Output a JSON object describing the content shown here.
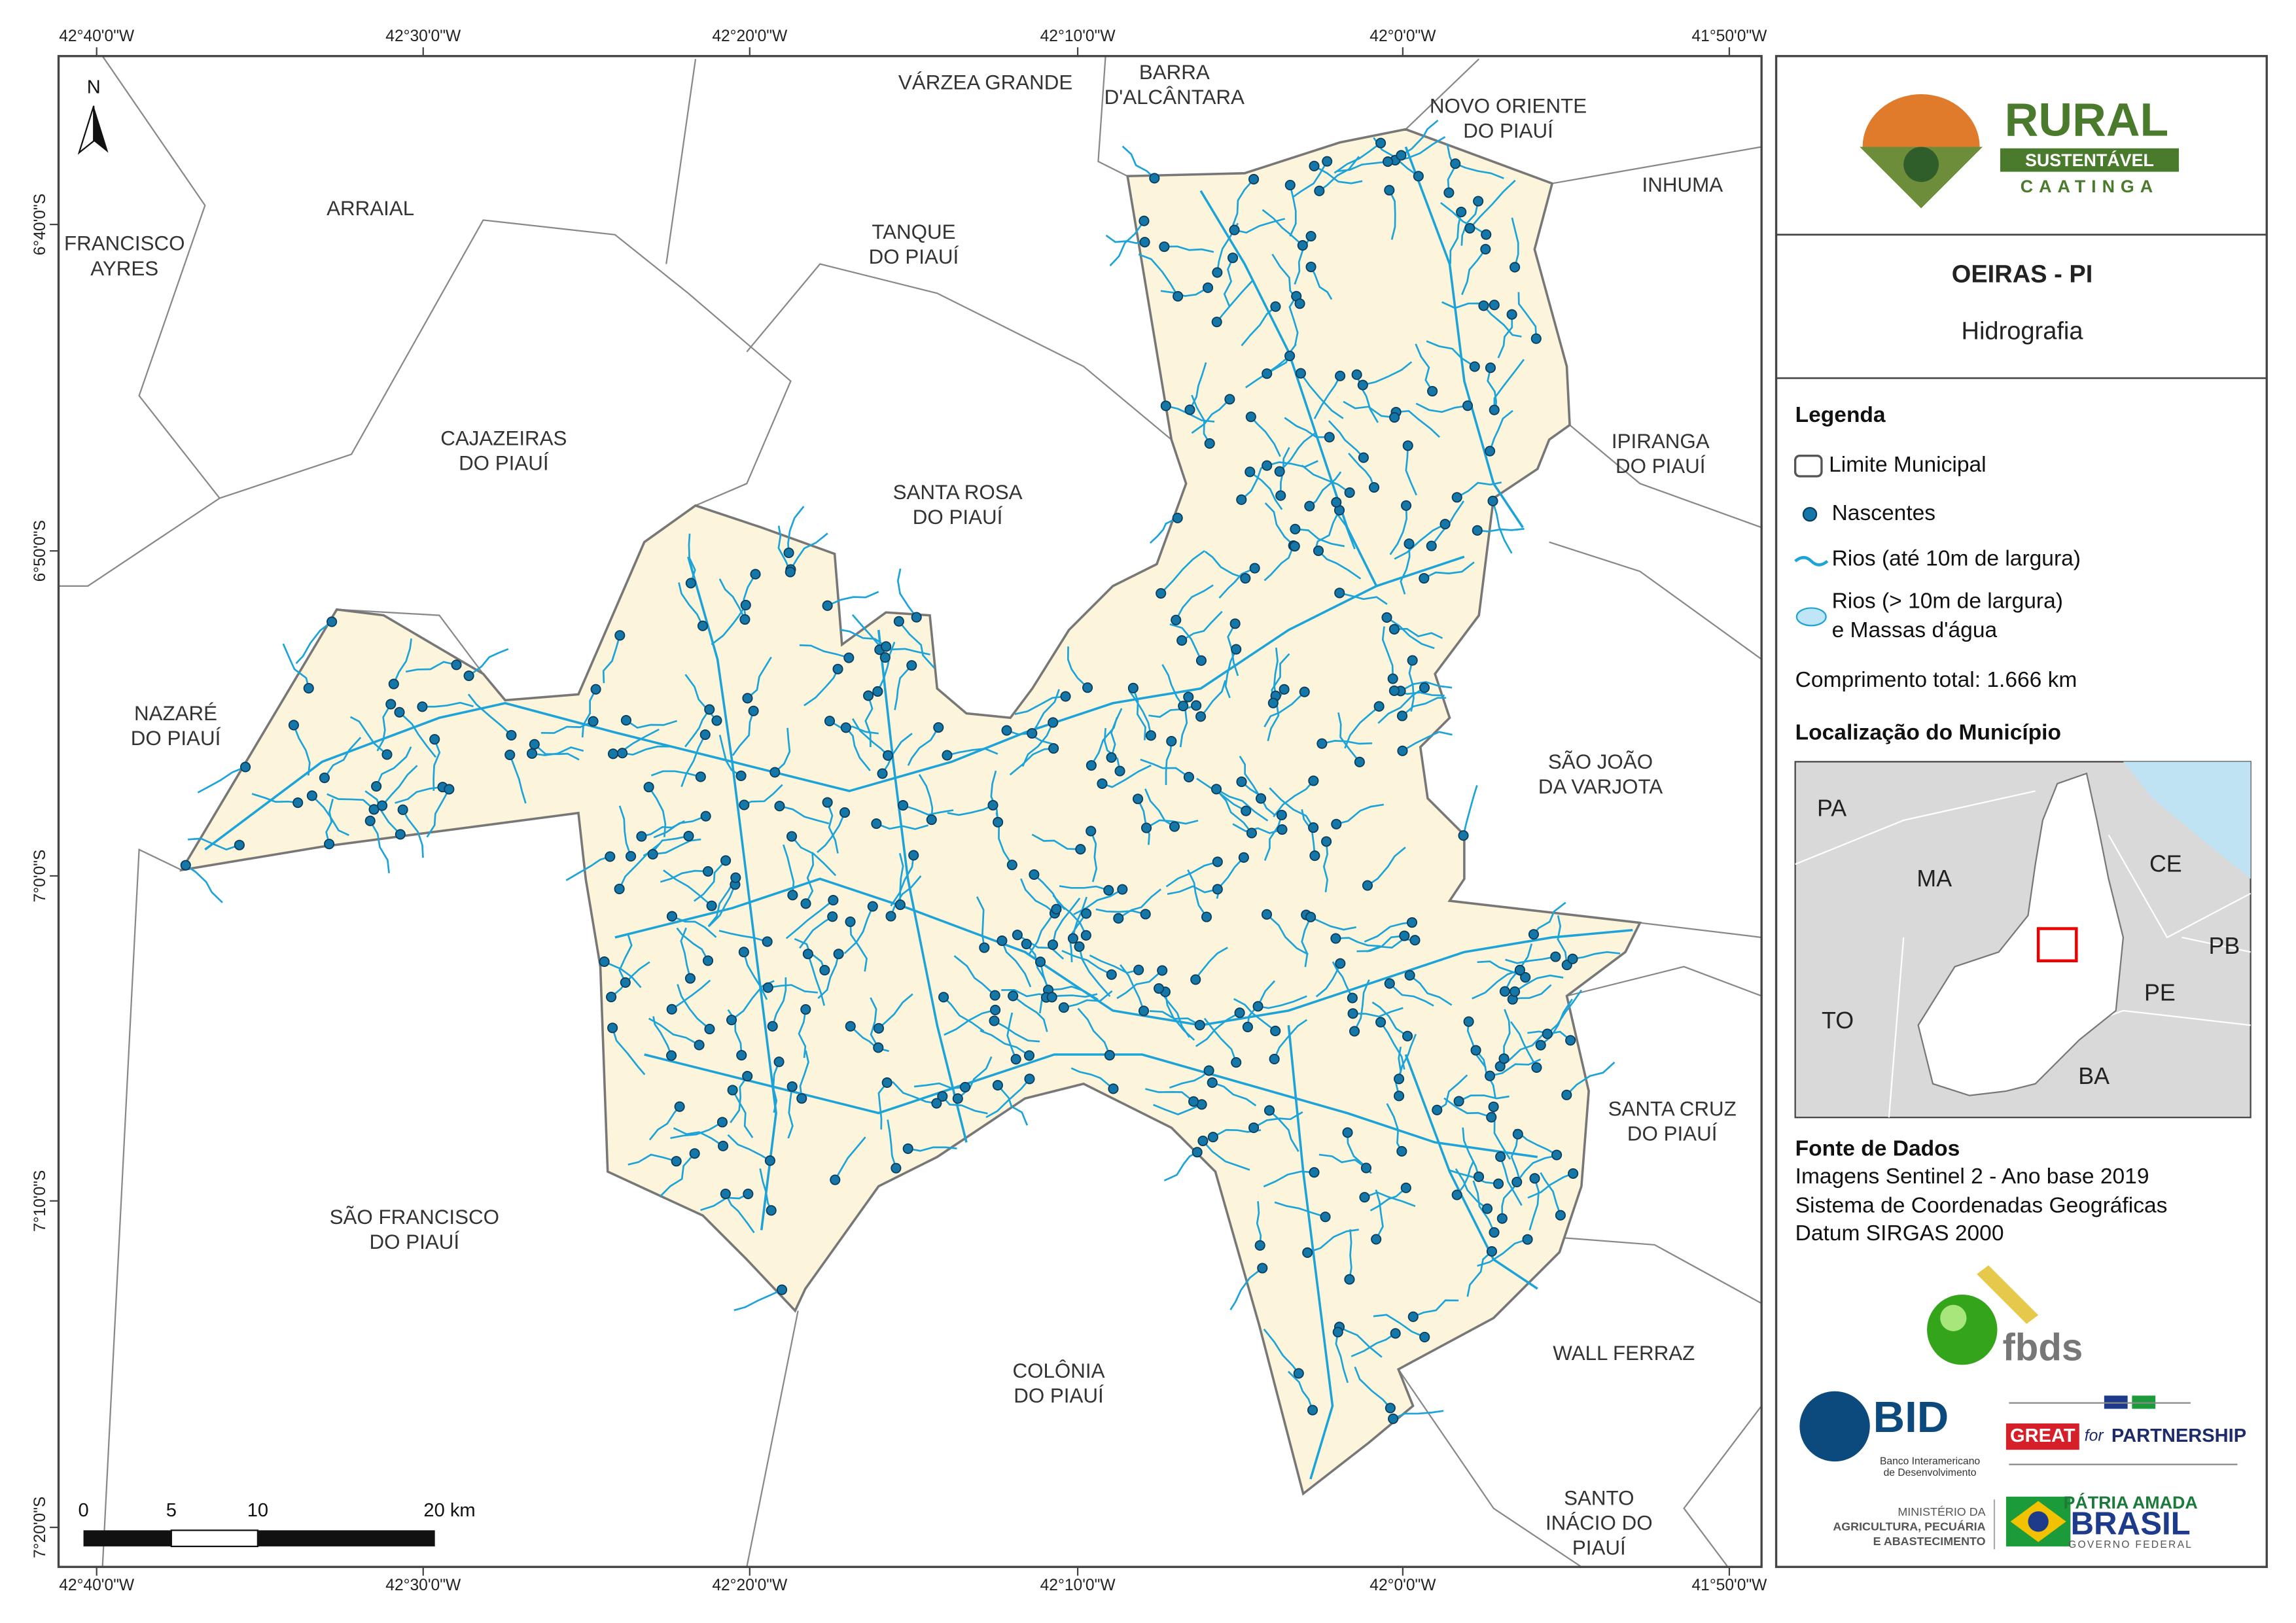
{
  "map": {
    "top_labels": [
      "42°40'0\"W",
      "42°30'0\"W",
      "42°20'0\"W",
      "42°10'0\"W",
      "42°0'0\"W",
      "41°50'0\"W"
    ],
    "bottom_labels": [
      "42°40'0\"W",
      "42°30'0\"W",
      "42°20'0\"W",
      "42°10'0\"W",
      "42°0'0\"W",
      "41°50'0\"W"
    ],
    "left_labels": [
      "6°40'0\"S",
      "6°50'0\"S",
      "7°0'0\"S",
      "7°10'0\"S",
      "7°20'0\"S"
    ],
    "places": [
      [
        "VÁRZEA GRANDE"
      ],
      [
        "BARRA",
        "D'ALCÂNTARA"
      ],
      [
        "NOVO ORIENTE",
        "DO PIAUÍ"
      ],
      [
        "INHUMA"
      ],
      [
        "ARRAIAL"
      ],
      [
        "FRANCISCO",
        "AYRES"
      ],
      [
        "TANQUE",
        "DO PIAUÍ"
      ],
      [
        "CAJAZEIRAS",
        "DO PIAUÍ"
      ],
      [
        "SANTA ROSA",
        "DO PIAUÍ"
      ],
      [
        "IPIRANGA",
        "DO PIAUÍ"
      ],
      [
        "NAZARÉ",
        "DO PIAUÍ"
      ],
      [
        "SÃO JOÃO",
        "DA VARJOTA"
      ],
      [
        "SANTA CRUZ",
        "DO PIAUÍ"
      ],
      [
        "SÃO FRANCISCO",
        "DO PIAUÍ"
      ],
      [
        "WALL FERRAZ"
      ],
      [
        "COLÔNIA",
        "DO PIAUÍ"
      ],
      [
        "SANTO",
        "INÁCIO DO",
        "PIAUÍ"
      ]
    ],
    "north": "N",
    "scale_labels": [
      "0",
      "5",
      "10",
      "20 km"
    ]
  },
  "panel": {
    "logo": {
      "title": "RURAL",
      "band": "SUSTENTÁVEL",
      "sub": "CAATINGA"
    },
    "title": "OEIRAS - PI",
    "subtitle": "Hidrografia",
    "legend": {
      "title": "Legenda",
      "items": [
        "Limite Municipal",
        "Nascentes",
        "Rios (até 10m de largura)",
        [
          "Rios (> 10m de largura)",
          "e Massas d'água"
        ]
      ],
      "total": "Comprimento total:  1.666 km"
    },
    "location": {
      "title": "Localização do Município",
      "states": [
        "PA",
        "MA",
        "CE",
        "PB",
        "PE",
        "TO",
        "BA"
      ]
    },
    "sources": {
      "title": "Fonte de Dados",
      "lines": [
        "Imagens Sentinel 2 - Ano base 2019",
        "Sistema de Coordenadas Geográficas",
        "Datum SIRGAS 2000"
      ]
    },
    "logos": {
      "fbds": "fbds",
      "bid": "BID",
      "bid_sub": [
        "Banco Interamericano",
        "de Desenvolvimento"
      ],
      "great": "GREAT",
      "for": "for",
      "partnership": "PARTNERSHIP",
      "ministry": [
        "MINISTÉRIO DA",
        "AGRICULTURA, PECUÁRIA",
        "E ABASTECIMENTO"
      ],
      "patria": "PÁTRIA AMADA",
      "brasil": "BRASIL",
      "gov": "GOVERNO FEDERAL"
    }
  }
}
